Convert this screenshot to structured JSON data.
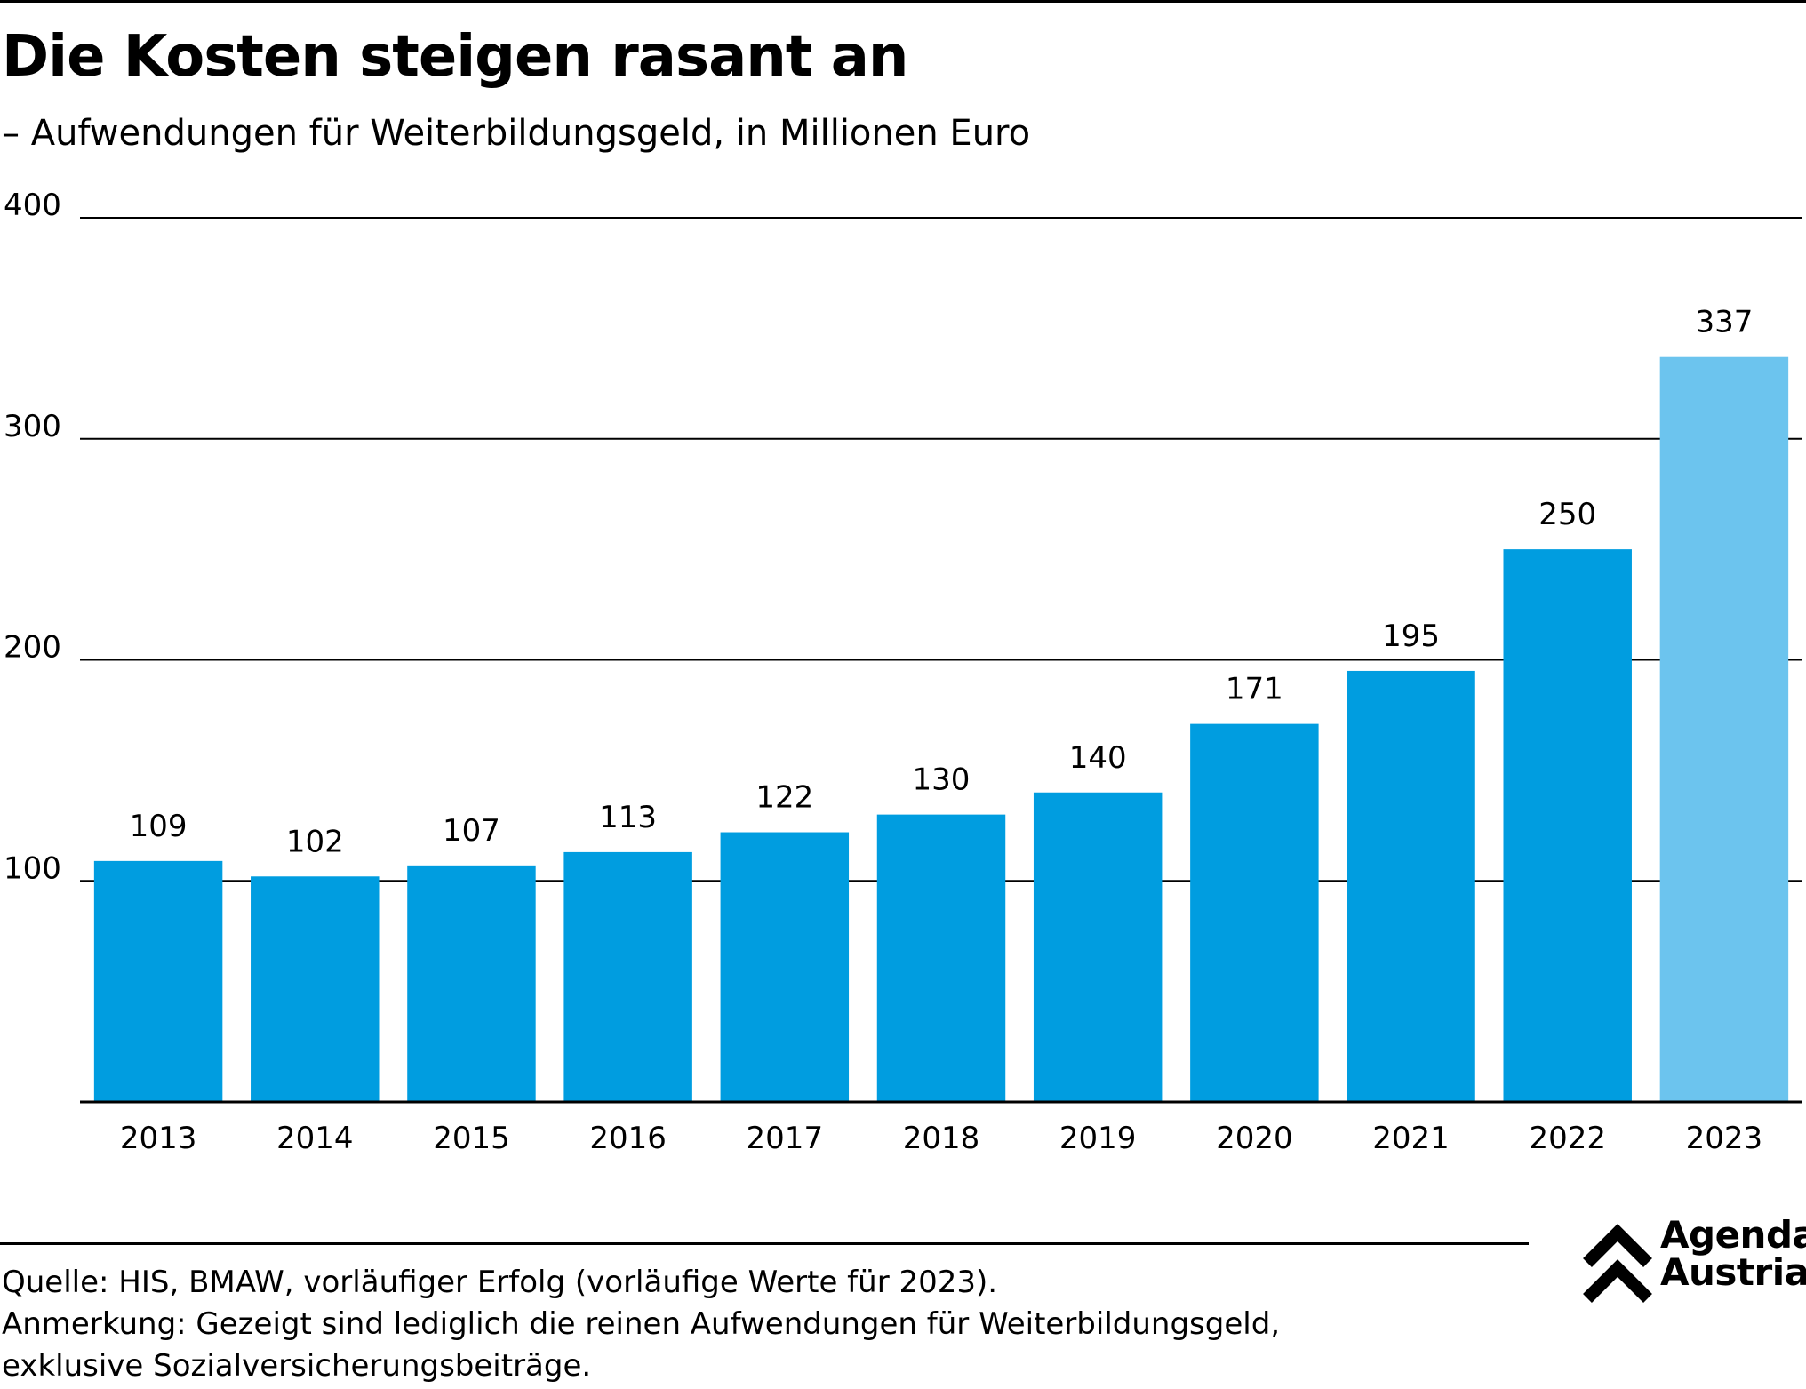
{
  "title": "Die Kosten steigen rasant an",
  "subtitle": "– Aufwendungen für Weiterbildungsgeld, in Millionen Euro",
  "colors": {
    "bar": "#009DE0",
    "bar_provisional": "#6CC4EE",
    "gridline": "#000000",
    "text": "#000000"
  },
  "chart_data": {
    "type": "bar",
    "categories": [
      "2013",
      "2014",
      "2015",
      "2016",
      "2017",
      "2018",
      "2019",
      "2020",
      "2021",
      "2022",
      "2023"
    ],
    "values": [
      109,
      102,
      107,
      113,
      122,
      130,
      140,
      171,
      195,
      250,
      337
    ],
    "data_labels": [
      "109",
      "102",
      "107",
      "113",
      "122",
      "130",
      "140",
      "171",
      "195",
      "250",
      "337"
    ],
    "provisional_categories": [
      "2023"
    ],
    "ylim": [
      0,
      400
    ],
    "yticks": [
      100,
      200,
      300,
      400
    ],
    "ytick_labels": [
      "100",
      "200",
      "300",
      "400"
    ],
    "grid": true,
    "legend": "none"
  },
  "footer": {
    "source": "Quelle: HIS, BMAW, vorläufiger Erfolg (vorläufige Werte für 2023).",
    "note_line1": "Anmerkung: Gezeigt sind lediglich die reinen Aufwendungen für Weiterbildungsgeld,",
    "note_line2": "exklusive Sozialversicherungsbeiträge."
  },
  "logo": {
    "line1": "Agenda",
    "line2": "Austria",
    "icon": "double-chevron-up-icon"
  }
}
